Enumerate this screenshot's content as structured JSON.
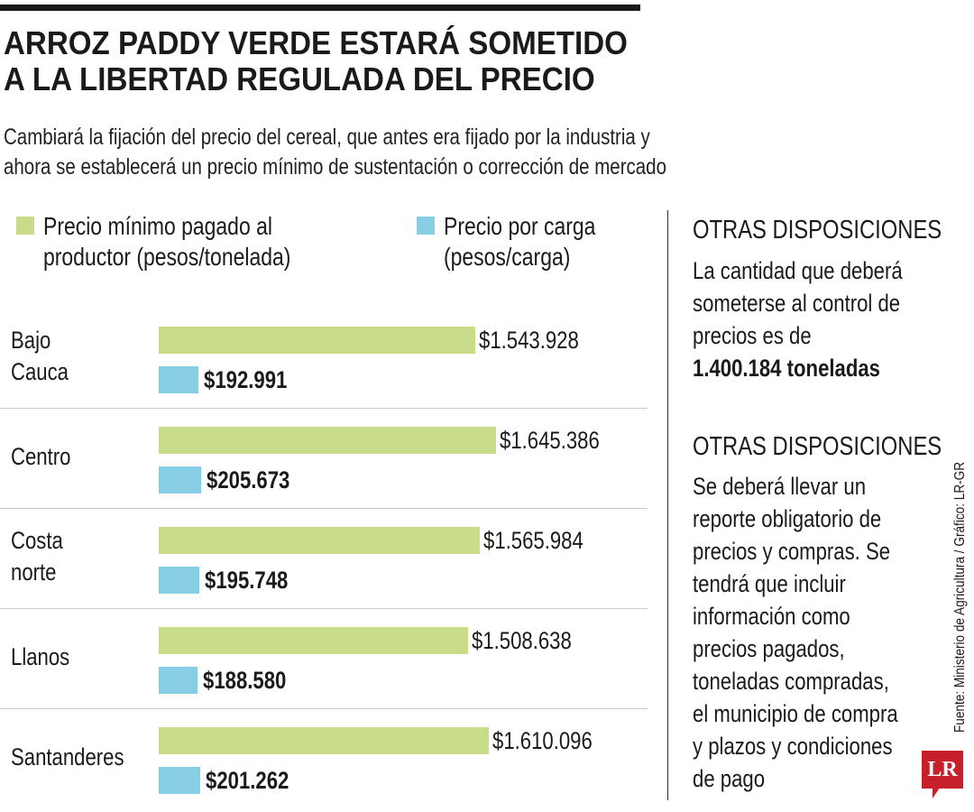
{
  "title_lines": [
    "ARROZ PADDY VERDE ESTARÁ SOMETIDO",
    "A LA LIBERTAD REGULADA DEL PRECIO"
  ],
  "subtitle_lines": [
    "Cambiará la fijación del precio del cereal, que antes era fijado por la industria y",
    "ahora se establecerá un precio mínimo de sustentación o corrección de mercado"
  ],
  "colors": {
    "green": "#c8dc8a",
    "blue": "#87cde4",
    "logo": "#c8202b"
  },
  "chart_data": {
    "type": "bar",
    "orientation": "horizontal",
    "categories": [
      "Bajo Cauca",
      "Centro",
      "Costa norte",
      "Llanos",
      "Santanderes"
    ],
    "category_labels": [
      [
        "Bajo",
        "Cauca"
      ],
      [
        "Centro"
      ],
      [
        "Costa",
        "norte"
      ],
      [
        "Llanos"
      ],
      [
        "Santanderes"
      ]
    ],
    "series": [
      {
        "name": "Precio mínimo pagado al productor (pesos/tonelada)",
        "legend_lines": [
          "Precio mínimo pagado al",
          "productor (pesos/tonelada)"
        ],
        "color": "#c8dc8a",
        "values": [
          1543928,
          1645386,
          1565984,
          1508638,
          1610096
        ],
        "labels": [
          "$1.543.928",
          "$1.645.386",
          "$1.565.984",
          "$1.508.638",
          "$1.610.096"
        ]
      },
      {
        "name": "Precio por carga (pesos/carga)",
        "legend_lines": [
          "Precio por carga",
          "(pesos/carga)"
        ],
        "color": "#87cde4",
        "values": [
          192991,
          205673,
          195748,
          188580,
          201262
        ],
        "labels": [
          "$192.991",
          "$205.673",
          "$195.748",
          "$188.580",
          "$201.262"
        ]
      }
    ],
    "legend": "top",
    "grid": false
  },
  "side": {
    "sections": [
      {
        "heading": "OTRAS DISPOSICIONES",
        "lines": [
          "La cantidad que deberá",
          "someterse al control de",
          "precios es de"
        ],
        "bold_line": "1.400.184 toneladas"
      },
      {
        "heading": "OTRAS DISPOSICIONES",
        "lines": [
          "Se deberá llevar un",
          "reporte obligatorio de",
          "precios y compras. Se",
          "tendrá que incluir",
          "información como",
          "precios pagados,",
          "toneladas compradas,",
          "el municipio de compra",
          "y plazos y condiciones",
          "de pago"
        ]
      }
    ]
  },
  "source": "Fuente: Ministerio de Agricultura / Gráfico: LR-GR",
  "logo_text": "LR"
}
